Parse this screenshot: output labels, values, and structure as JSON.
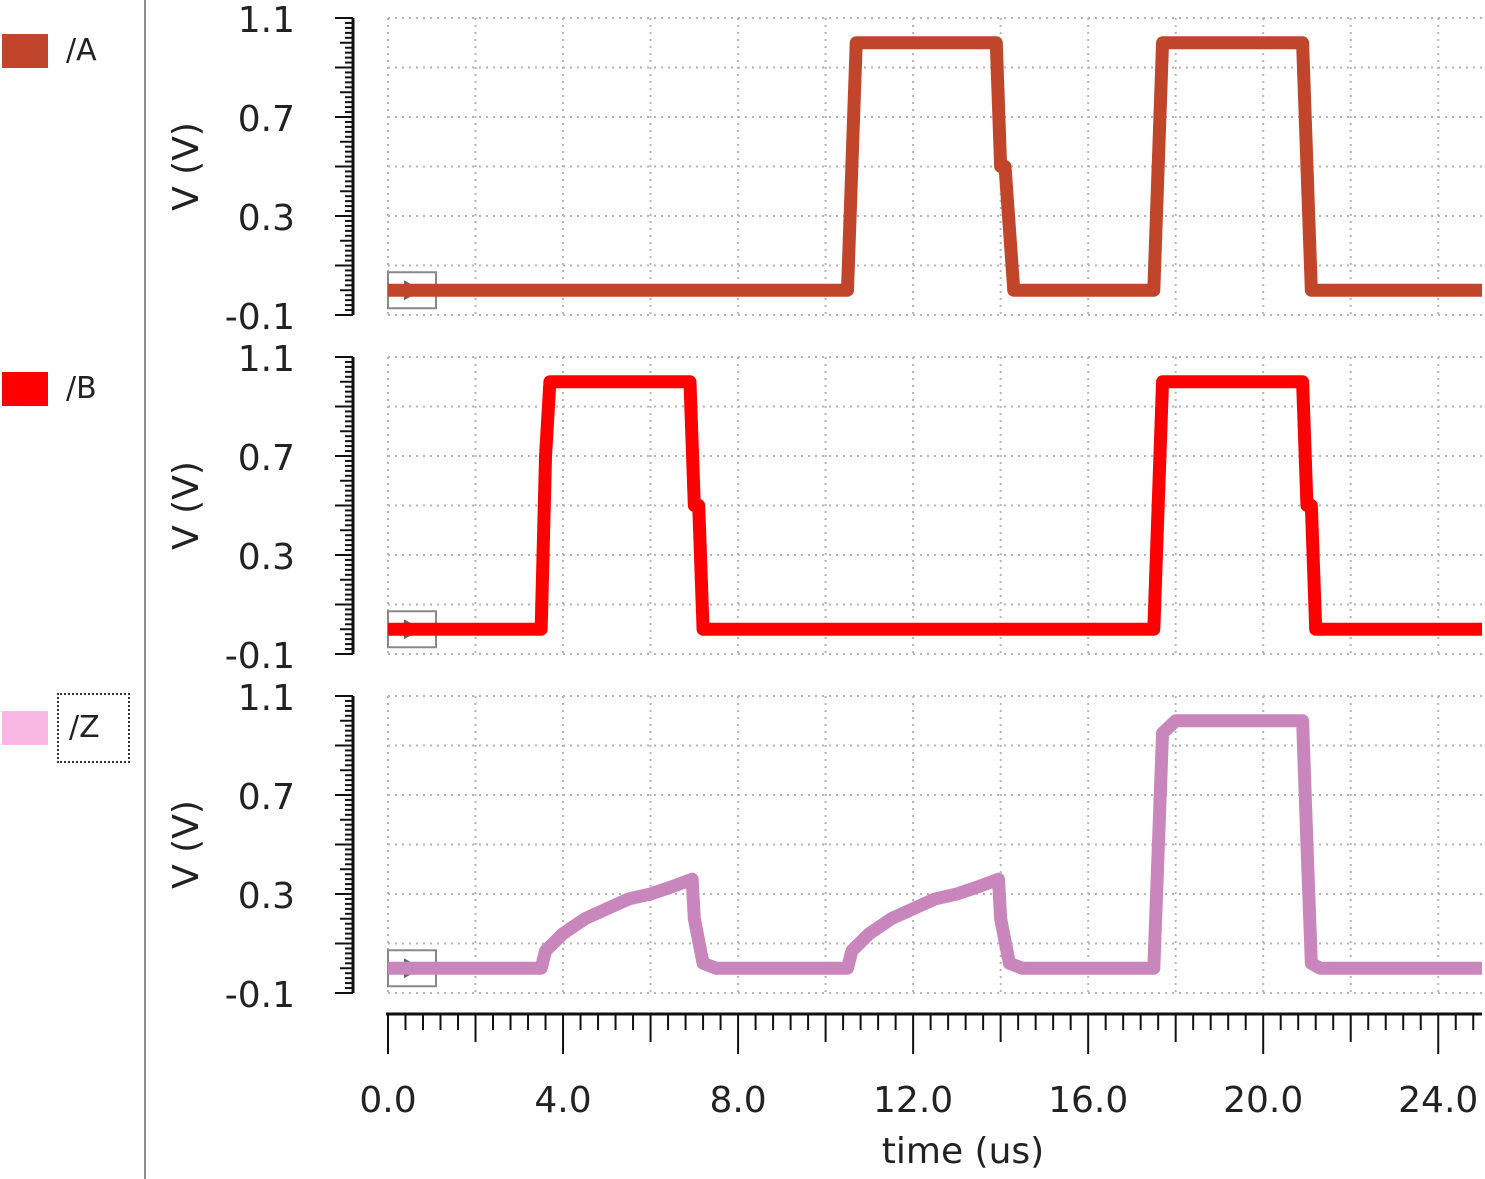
{
  "legend": [
    {
      "label": "/A",
      "color": "#c0452a",
      "selected": false
    },
    {
      "label": "/B",
      "color": "#ff0000",
      "selected": false
    },
    {
      "label": "/Z",
      "color": "#f9b8e4",
      "selected": true
    }
  ],
  "chart_data": {
    "type": "line",
    "xlabel": "time (us)",
    "xlim": [
      0,
      25
    ],
    "xticks": [
      "0.0",
      "4.0",
      "8.0",
      "12.0",
      "16.0",
      "20.0",
      "24.0"
    ],
    "xtick_values": [
      0,
      4,
      8,
      12,
      16,
      20,
      24
    ],
    "grid": true,
    "panels": [
      {
        "name": "/A",
        "color": "#c0452a",
        "ylabel": "V (V)",
        "ylim": [
          -0.1,
          1.1
        ],
        "yticks": [
          "1.1",
          "0.7",
          "0.3",
          "-0.1"
        ],
        "ytick_values": [
          1.1,
          0.7,
          0.3,
          -0.1
        ],
        "x": [
          0,
          10.5,
          10.7,
          13.9,
          14.0,
          14.1,
          14.3,
          17.5,
          17.7,
          20.9,
          21.1,
          25
        ],
        "y": [
          0.0,
          0.0,
          1.0,
          1.0,
          0.5,
          0.5,
          0.0,
          0.0,
          1.0,
          1.0,
          0.0,
          0.0
        ]
      },
      {
        "name": "/B",
        "color": "#ff0000",
        "ylabel": "V (V)",
        "ylim": [
          -0.1,
          1.1
        ],
        "yticks": [
          "1.1",
          "0.7",
          "0.3",
          "-0.1"
        ],
        "ytick_values": [
          1.1,
          0.7,
          0.3,
          -0.1
        ],
        "x": [
          0,
          3.5,
          3.6,
          3.7,
          6.9,
          7.0,
          7.1,
          7.2,
          17.5,
          17.7,
          20.9,
          21.0,
          21.1,
          21.2,
          25
        ],
        "y": [
          0.0,
          0.0,
          0.7,
          1.0,
          1.0,
          0.5,
          0.5,
          0.0,
          0.0,
          1.0,
          1.0,
          0.5,
          0.5,
          0.0,
          0.0
        ]
      },
      {
        "name": "/Z",
        "color": "#c986bd",
        "ylabel": "V (V)",
        "ylim": [
          -0.1,
          1.1
        ],
        "yticks": [
          "1.1",
          "0.7",
          "0.3",
          "-0.1"
        ],
        "ytick_values": [
          1.1,
          0.7,
          0.3,
          -0.1
        ],
        "x": [
          0,
          3.5,
          3.6,
          4.0,
          4.5,
          5.0,
          5.5,
          6.0,
          6.5,
          6.95,
          7.0,
          7.2,
          7.5,
          10.5,
          10.6,
          11.0,
          11.5,
          12.0,
          12.5,
          13.0,
          13.5,
          13.95,
          14.0,
          14.2,
          14.5,
          17.5,
          17.7,
          18.0,
          20.9,
          21.0,
          21.1,
          21.3,
          25
        ],
        "y": [
          0.0,
          0.0,
          0.07,
          0.14,
          0.2,
          0.24,
          0.28,
          0.3,
          0.33,
          0.36,
          0.2,
          0.02,
          0.0,
          0.0,
          0.07,
          0.14,
          0.2,
          0.24,
          0.28,
          0.3,
          0.33,
          0.36,
          0.2,
          0.02,
          0.0,
          0.0,
          0.95,
          1.0,
          1.0,
          0.5,
          0.02,
          0.0,
          0.0
        ]
      }
    ]
  }
}
